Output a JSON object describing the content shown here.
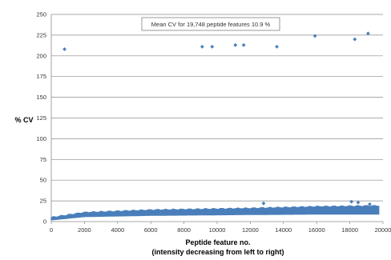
{
  "chart_data": {
    "type": "scatter",
    "title": "",
    "annotation": "Mean CV for 19,748 peptide features    10.9 %",
    "ylabel": "% CV",
    "xlabel_lines": [
      "Peptide feature  no.",
      "(intensity decreasing from  left to right)"
    ],
    "xlim": [
      0,
      20000
    ],
    "ylim": [
      0,
      250
    ],
    "xticks": [
      0,
      2000,
      4000,
      6000,
      8000,
      10000,
      12000,
      14000,
      16000,
      18000,
      20000
    ],
    "yticks": [
      0,
      25,
      50,
      75,
      100,
      125,
      150,
      175,
      200,
      225,
      250
    ],
    "grid": "horizontal",
    "legend": "none",
    "color": "#4a7ebb",
    "dense_band": {
      "x_range": [
        0,
        19748
      ],
      "n_features": 19748,
      "lower_cv": [
        [
          0,
          2
        ],
        [
          2000,
          6
        ],
        [
          6000,
          7.5
        ],
        [
          12000,
          8.5
        ],
        [
          16000,
          9
        ],
        [
          19748,
          9
        ]
      ],
      "upper_cv": [
        [
          0,
          5
        ],
        [
          2000,
          11
        ],
        [
          6000,
          14
        ],
        [
          12000,
          16
        ],
        [
          16000,
          18
        ],
        [
          19748,
          19
        ]
      ]
    },
    "points": [
      {
        "x": 800,
        "y": 208
      },
      {
        "x": 9100,
        "y": 211
      },
      {
        "x": 9700,
        "y": 211
      },
      {
        "x": 11100,
        "y": 213
      },
      {
        "x": 11600,
        "y": 213
      },
      {
        "x": 13600,
        "y": 211
      },
      {
        "x": 15900,
        "y": 224
      },
      {
        "x": 18300,
        "y": 220
      },
      {
        "x": 19100,
        "y": 227
      },
      {
        "x": 12800,
        "y": 22
      },
      {
        "x": 18100,
        "y": 24
      },
      {
        "x": 18500,
        "y": 23
      },
      {
        "x": 19200,
        "y": 21
      }
    ]
  }
}
